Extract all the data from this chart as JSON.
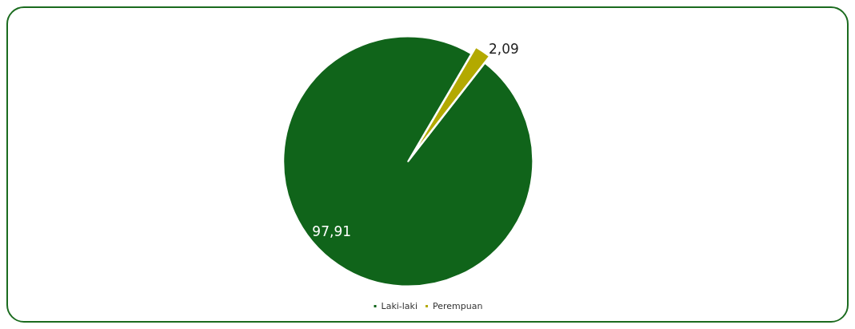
{
  "chart_data": {
    "type": "pie",
    "categories": [
      "Laki-laki",
      "Perempuan"
    ],
    "values": [
      97.91,
      2.09
    ],
    "colors": [
      "#10641a",
      "#b3a900"
    ],
    "value_labels": [
      "97,91",
      "2,09"
    ],
    "legend": "bottom"
  }
}
